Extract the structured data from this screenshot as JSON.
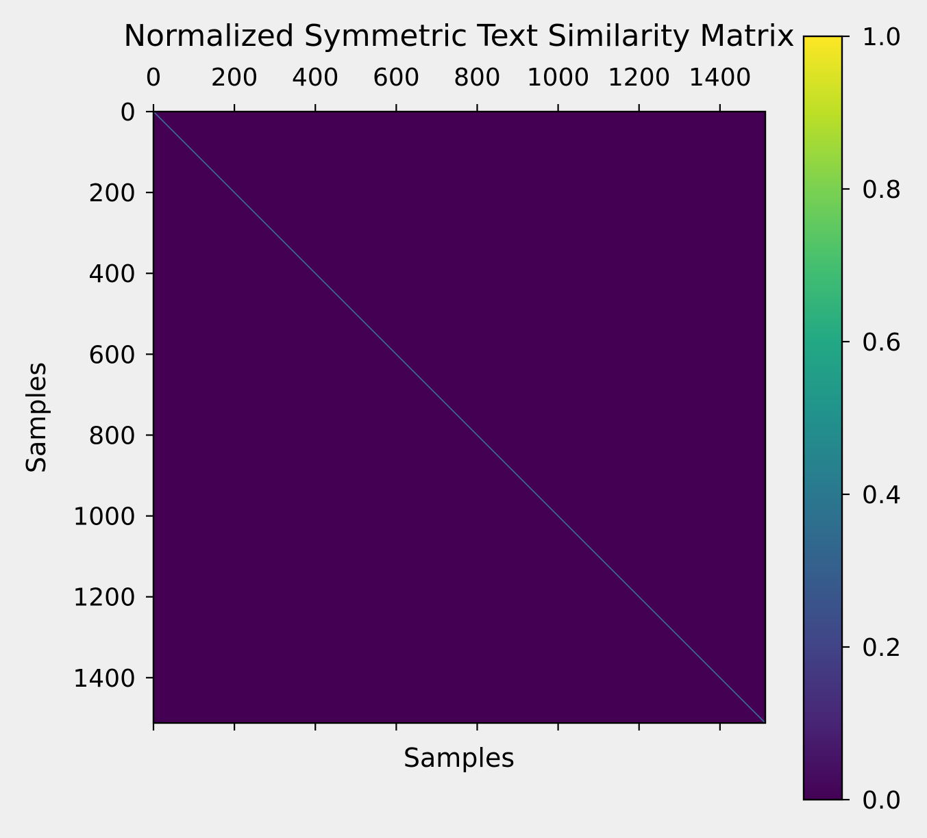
{
  "chart_data": {
    "type": "heatmap",
    "title": "Normalized Symmetric Text Similarity Matrix",
    "xlabel": "Samples",
    "ylabel": "Samples",
    "matrix_size": 1512,
    "xlim": [
      0,
      1512
    ],
    "ylim": [
      0,
      1512
    ],
    "x_ticks": [
      0,
      200,
      400,
      600,
      800,
      1000,
      1200,
      1400
    ],
    "y_ticks": [
      0,
      200,
      400,
      600,
      800,
      1000,
      1200,
      1400
    ],
    "x_tick_labels": [
      "0",
      "200",
      "400",
      "600",
      "800",
      "1000",
      "1200",
      "1400"
    ],
    "y_tick_labels": [
      "0",
      "200",
      "400",
      "600",
      "800",
      "1000",
      "1200",
      "1400"
    ],
    "x_axis_position": "top",
    "colorbar": {
      "colormap": "viridis",
      "range": [
        0.0,
        1.0
      ],
      "ticks": [
        0.0,
        0.2,
        0.4,
        0.6,
        0.8,
        1.0
      ],
      "tick_labels": [
        "0.0",
        "0.2",
        "0.4",
        "0.6",
        "0.8",
        "1.0"
      ]
    },
    "diagonal_value": 1.0,
    "off_diagonal_value": 0.0,
    "colors": {
      "background": "#efefef",
      "low": "#440154",
      "high": "#fde725"
    }
  }
}
